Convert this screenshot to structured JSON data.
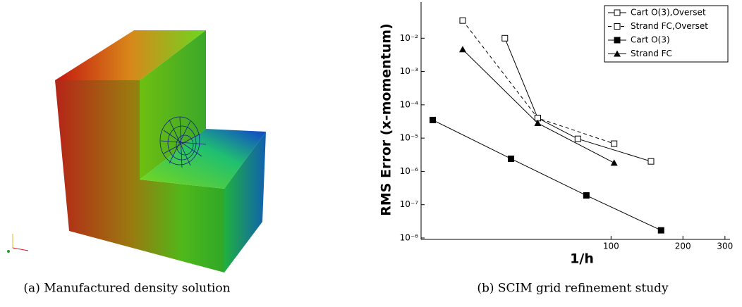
{
  "figure_a": {
    "caption": "(a) Manufactured density solution"
  },
  "chart_data": {
    "type": "line",
    "caption": "(b) SCIM grid refinement study",
    "x_label": "1/h",
    "y_label": "RMS Error (x-momentum)",
    "xlog": true,
    "ylog": true,
    "grid": false,
    "legend": "top-right",
    "xlim": [
      16,
      315
    ],
    "xticks": [
      100,
      200,
      300
    ],
    "ylim": [
      1e-08,
      0.1
    ],
    "yticks": [
      {
        "value": 1e-08,
        "label": "10⁻⁸"
      },
      {
        "value": 1e-07,
        "label": "10⁻⁷"
      },
      {
        "value": 1e-06,
        "label": "10⁻⁶"
      },
      {
        "value": 1e-05,
        "label": "10⁻⁵"
      },
      {
        "value": 0.0001,
        "label": "10⁻⁴"
      },
      {
        "value": 0.001,
        "label": "10⁻³"
      },
      {
        "value": 0.01,
        "label": "10⁻²"
      }
    ],
    "series": [
      {
        "name": "Cart O(3),Overset",
        "color": "#000000",
        "marker": "open-square",
        "dashed": false,
        "x": [
          35.9,
          49.3,
          72.6,
          147
        ],
        "values": [
          0.01,
          4e-05,
          9.5e-06,
          2e-06
        ]
      },
      {
        "name": "Strand FC,Overset",
        "color": "#000000",
        "marker": "open-square",
        "dashed": true,
        "x": [
          23.9,
          49.3,
          103
        ],
        "values": [
          0.034,
          4e-05,
          6.8e-06
        ]
      },
      {
        "name": "Cart O(3)",
        "color": "#000000",
        "marker": "filled-square",
        "dashed": false,
        "x": [
          17.9,
          38.1,
          78.8,
          162
        ],
        "values": [
          3.5e-05,
          2.4e-06,
          1.9e-07,
          1.7e-08
        ]
      },
      {
        "name": "Strand FC",
        "color": "#000000",
        "marker": "filled-triangle",
        "dashed": false,
        "x": [
          23.9,
          49.3,
          103
        ],
        "values": [
          0.0046,
          2.8e-05,
          1.8e-06
        ]
      }
    ]
  }
}
